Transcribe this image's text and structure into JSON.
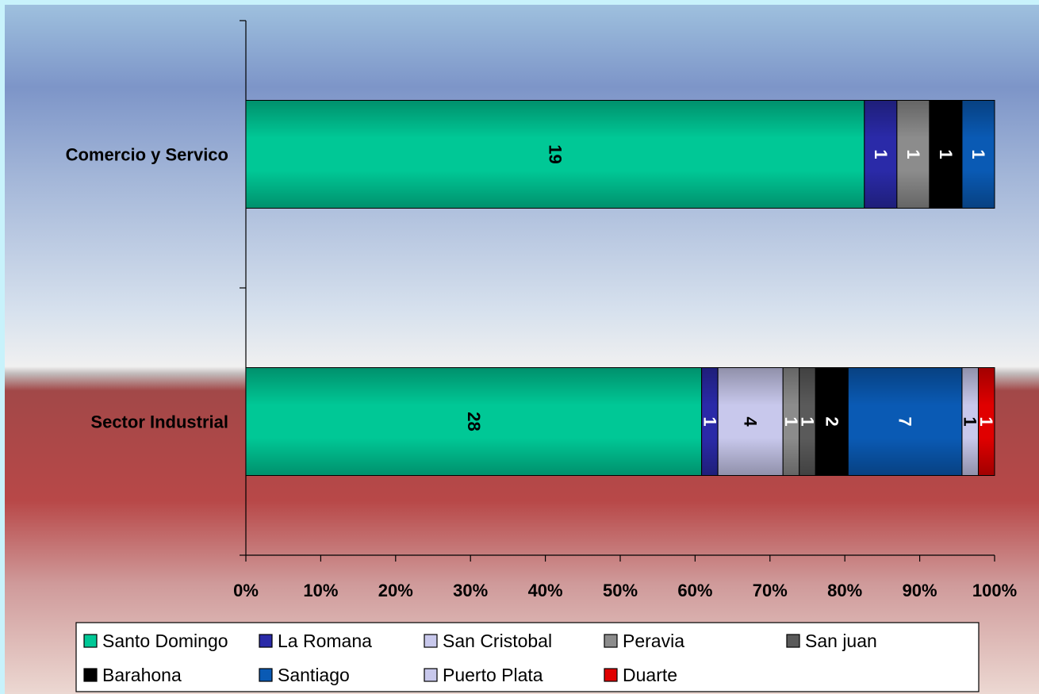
{
  "chart_data": {
    "type": "bar",
    "orientation": "horizontal",
    "stacking": "percent",
    "categories": [
      "Comercio y Servico",
      "Sector Industrial"
    ],
    "series": [
      {
        "name": "Santo Domingo",
        "color": "#00c896",
        "values": [
          19,
          28
        ]
      },
      {
        "name": "La Romana",
        "color": "#2a2aa8",
        "values": [
          1,
          1
        ]
      },
      {
        "name": "San Cristobal",
        "color": "#c8c8ec",
        "values": [
          0,
          4
        ]
      },
      {
        "name": "Peravia",
        "color": "#8c8c8c",
        "values": [
          1,
          1
        ]
      },
      {
        "name": "San juan",
        "color": "#5a5a5a",
        "values": [
          0,
          1
        ]
      },
      {
        "name": "Barahona",
        "color": "#000000",
        "values": [
          1,
          2
        ]
      },
      {
        "name": "Santiago",
        "color": "#0a5ab4",
        "values": [
          1,
          7
        ]
      },
      {
        "name": "Puerto Plata",
        "color": "#c8c8ec",
        "values": [
          0,
          1
        ]
      },
      {
        "name": "Duarte",
        "color": "#e00000",
        "values": [
          0,
          1
        ]
      }
    ],
    "xticks": [
      "0%",
      "10%",
      "20%",
      "30%",
      "40%",
      "50%",
      "60%",
      "70%",
      "80%",
      "90%",
      "100%"
    ],
    "xlim": [
      0,
      100
    ],
    "grid": false,
    "legend_position": "bottom"
  }
}
